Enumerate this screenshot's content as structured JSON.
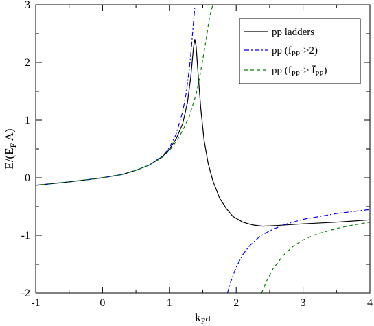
{
  "chart_data": {
    "type": "line",
    "xlabel": {
      "main": "k",
      "sub": "F",
      "tail": "a"
    },
    "ylabel": {
      "pre": "E/(E",
      "sub": "F",
      "tail": " A)"
    },
    "xlim": [
      -1,
      4
    ],
    "ylim": [
      -2,
      3
    ],
    "grid": false,
    "legend_position": "top-right",
    "x_ticks": [
      -1,
      0,
      1,
      2,
      3,
      4
    ],
    "y_ticks": [
      -2,
      -1,
      0,
      1,
      2,
      3
    ],
    "x_tick_labels": [
      "-1",
      "0",
      "1",
      "2",
      "3",
      "4"
    ],
    "y_tick_labels": [
      "-2",
      "-1",
      "0",
      "1",
      "2",
      "3"
    ],
    "series": [
      {
        "name": "pp ladders",
        "legend": {
          "pre": "pp ladders",
          "sub": "",
          "post": "",
          "bar": false
        },
        "color": "#000000",
        "dash": "none",
        "x": [
          -1.0,
          -0.5,
          0.0,
          0.3,
          0.5,
          0.7,
          0.9,
          1.0,
          1.1,
          1.2,
          1.27,
          1.32,
          1.36,
          1.38,
          1.4,
          1.43,
          1.47,
          1.52,
          1.58,
          1.65,
          1.75,
          1.85,
          1.95,
          2.1,
          2.25,
          2.4,
          2.6,
          3.0,
          3.5,
          4.0
        ],
        "y": [
          -0.13,
          -0.07,
          0.0,
          0.06,
          0.13,
          0.22,
          0.37,
          0.49,
          0.67,
          0.94,
          1.3,
          1.75,
          2.25,
          2.4,
          2.28,
          1.8,
          1.2,
          0.65,
          0.25,
          -0.05,
          -0.35,
          -0.53,
          -0.67,
          -0.77,
          -0.82,
          -0.84,
          -0.83,
          -0.8,
          -0.77,
          -0.73
        ]
      },
      {
        "name": "pp (fPP->2)",
        "legend": {
          "pre": "pp (f",
          "sub": "PP",
          "post": "->2)",
          "bar": false
        },
        "color": "#0000ff",
        "dash": "7,3,2,3",
        "segments": [
          {
            "x": [
              -1.0,
              -0.5,
              0.0,
              0.3,
              0.5,
              0.7,
              0.9,
              1.0,
              1.1,
              1.2,
              1.25,
              1.3,
              1.33,
              1.36,
              1.385
            ],
            "y": [
              -0.13,
              -0.07,
              0.0,
              0.06,
              0.13,
              0.22,
              0.38,
              0.52,
              0.75,
              1.15,
              1.45,
              1.9,
              2.25,
              2.7,
              3.0
            ]
          },
          {
            "x": [
              1.87,
              1.92,
              2.0,
              2.1,
              2.2,
              2.35,
              2.5,
              2.7,
              3.0,
              3.5,
              4.0
            ],
            "y": [
              -2.0,
              -1.8,
              -1.55,
              -1.33,
              -1.18,
              -1.02,
              -0.92,
              -0.82,
              -0.72,
              -0.62,
              -0.55
            ]
          }
        ]
      },
      {
        "name": "pp (fPP-> f̄PP)",
        "legend": {
          "pre": "pp (f",
          "sub": "PP",
          "post": "-> ",
          "bar": true,
          "bar_sub": "PP",
          "close": ")"
        },
        "color": "#008000",
        "dash": "5,4",
        "segments": [
          {
            "x": [
              -1.0,
              -0.5,
              0.0,
              0.3,
              0.5,
              0.7,
              0.9,
              1.0,
              1.1,
              1.2,
              1.3,
              1.4,
              1.45,
              1.5,
              1.55,
              1.6,
              1.65
            ],
            "y": [
              -0.13,
              -0.07,
              0.0,
              0.06,
              0.13,
              0.22,
              0.36,
              0.47,
              0.62,
              0.82,
              1.07,
              1.45,
              1.72,
              2.05,
              2.4,
              2.78,
              3.0
            ]
          },
          {
            "x": [
              2.38,
              2.45,
              2.55,
              2.7,
              2.85,
              3.0,
              3.2,
              3.5,
              3.75,
              4.0
            ],
            "y": [
              -2.0,
              -1.8,
              -1.58,
              -1.35,
              -1.19,
              -1.08,
              -0.98,
              -0.88,
              -0.82,
              -0.77
            ]
          }
        ]
      }
    ]
  }
}
